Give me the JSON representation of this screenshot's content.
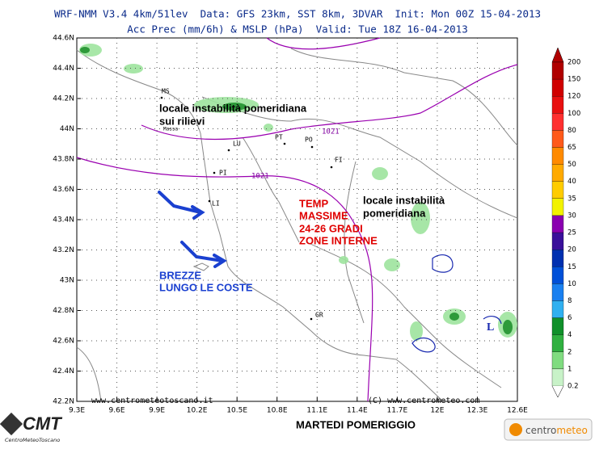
{
  "header": {
    "line1": "WRF-NMM V3.4 4km/51lev  Data: GFS 23km, SST 8km, 3DVAR  Init: Mon 00Z 15-04-2013",
    "line2": "Acc Prec (mm/6h) & MSLP (hPa)  Valid: Tue 18Z 16-04-2013"
  },
  "map": {
    "lat_ticks": [
      "44.6N",
      "44.4N",
      "44.2N",
      "44N",
      "43.8N",
      "43.6N",
      "43.4N",
      "43.2N",
      "43N",
      "42.8N",
      "42.6N",
      "42.4N",
      "42.2N"
    ],
    "lon_ticks": [
      "9.3E",
      "9.6E",
      "9.9E",
      "10.2E",
      "10.5E",
      "10.8E",
      "11.1E",
      "11.4E",
      "11.7E",
      "12E",
      "12.3E",
      "12.6E"
    ],
    "cities": [
      "MS",
      "Massa",
      "LU",
      "PT",
      "PO",
      "FI",
      "PI",
      "LI",
      "GR"
    ],
    "isobar_labels": [
      "1021",
      "1021"
    ],
    "low_label": "L",
    "credits": [
      "www.centrometeotoscano.it",
      "(C) www.centrometeo.com"
    ]
  },
  "annotations": {
    "north": [
      "locale instabilità pomeridiana",
      "sui rilievi"
    ],
    "temp": [
      "TEMP",
      "MASSIME",
      "24-26 GRADI",
      "ZONE INTERNE"
    ],
    "east": [
      "locale instabilità",
      "pomeridiana"
    ],
    "coast": [
      "BREZZE",
      "LUNGO LE COSTE"
    ]
  },
  "colorbar": {
    "labels": [
      200,
      150,
      120,
      100,
      80,
      65,
      50,
      40,
      35,
      30,
      25,
      20,
      15,
      10,
      8,
      6,
      4,
      2,
      1,
      0.2
    ],
    "colors": [
      "#b00000",
      "#d00000",
      "#e81010",
      "#ff3030",
      "#ff5a1a",
      "#ff8a00",
      "#ffaa00",
      "#ffcc00",
      "#f2f200",
      "#8a00b0",
      "#3a109a",
      "#0030b0",
      "#0050d8",
      "#1a80f0",
      "#30b0f0",
      "#10902a",
      "#30b040",
      "#80dc80",
      "#c8f2c8"
    ]
  },
  "footer": {
    "title": "MARTEDI POMERIGGIO",
    "logo_left": "CMT",
    "logo_left_sub": "CentroMeteoToscano",
    "logo_right_a": "centro",
    "logo_right_b": "meteo"
  }
}
